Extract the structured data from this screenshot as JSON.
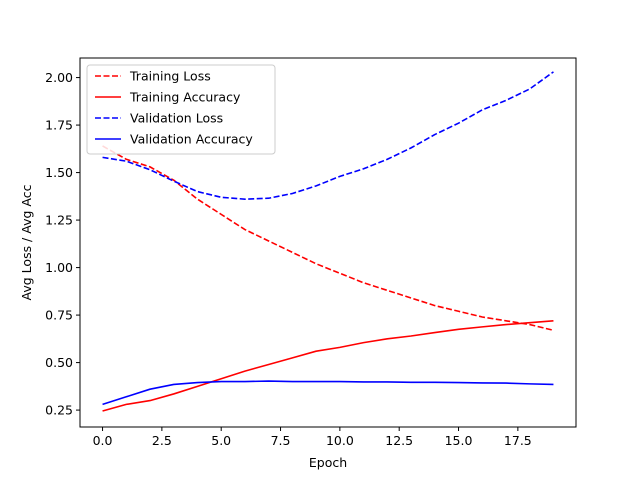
{
  "chart_data": {
    "type": "line",
    "title": "",
    "xlabel": "Epoch",
    "ylabel": "Avg Loss / Avg Acc",
    "xlim": [
      -0.95,
      19.95
    ],
    "ylim": [
      0.161,
      2.103
    ],
    "xticks": [
      0.0,
      2.5,
      5.0,
      7.5,
      10.0,
      12.5,
      15.0,
      17.5
    ],
    "xtick_labels": [
      "0.0",
      "2.5",
      "5.0",
      "7.5",
      "10.0",
      "12.5",
      "15.0",
      "17.5"
    ],
    "yticks": [
      0.25,
      0.5,
      0.75,
      1.0,
      1.25,
      1.5,
      1.75,
      2.0
    ],
    "ytick_labels": [
      "0.25",
      "0.50",
      "0.75",
      "1.00",
      "1.25",
      "1.50",
      "1.75",
      "2.00"
    ],
    "grid": false,
    "legend_position": "top-left",
    "x": [
      0,
      1,
      2,
      3,
      4,
      5,
      6,
      7,
      8,
      9,
      10,
      11,
      12,
      13,
      14,
      15,
      16,
      17,
      18,
      19
    ],
    "series": [
      {
        "name": "Training Loss",
        "color": "#ff0000",
        "dashed": true,
        "values": [
          1.64,
          1.57,
          1.53,
          1.46,
          1.36,
          1.28,
          1.2,
          1.14,
          1.08,
          1.02,
          0.97,
          0.92,
          0.88,
          0.84,
          0.8,
          0.77,
          0.74,
          0.72,
          0.7,
          0.67
        ]
      },
      {
        "name": "Training Accuracy",
        "color": "#ff0000",
        "dashed": false,
        "values": [
          0.245,
          0.28,
          0.3,
          0.335,
          0.375,
          0.415,
          0.455,
          0.49,
          0.525,
          0.56,
          0.58,
          0.605,
          0.625,
          0.64,
          0.658,
          0.675,
          0.688,
          0.7,
          0.71,
          0.72
        ]
      },
      {
        "name": "Validation Loss",
        "color": "#0000ff",
        "dashed": true,
        "values": [
          1.58,
          1.56,
          1.515,
          1.455,
          1.4,
          1.37,
          1.36,
          1.365,
          1.39,
          1.43,
          1.48,
          1.52,
          1.57,
          1.63,
          1.7,
          1.76,
          1.83,
          1.88,
          1.94,
          2.03
        ]
      },
      {
        "name": "Validation Accuracy",
        "color": "#0000ff",
        "dashed": false,
        "values": [
          0.28,
          0.32,
          0.36,
          0.385,
          0.395,
          0.4,
          0.4,
          0.403,
          0.4,
          0.4,
          0.4,
          0.398,
          0.398,
          0.396,
          0.396,
          0.395,
          0.393,
          0.392,
          0.388,
          0.385
        ]
      }
    ]
  }
}
